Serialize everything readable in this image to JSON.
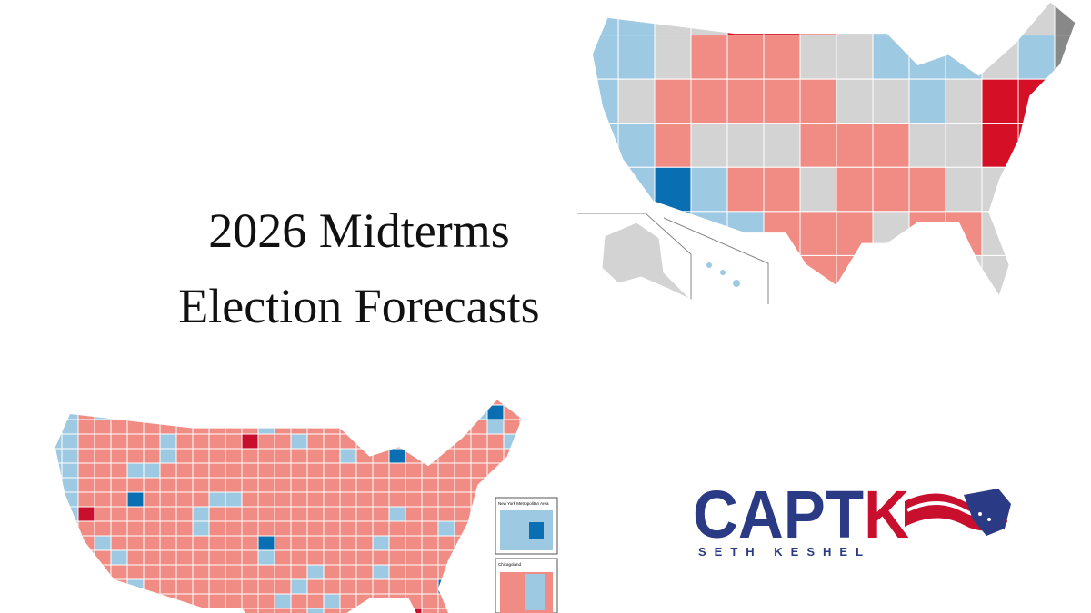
{
  "title": {
    "lines": [
      "2026 Midterms",
      "Election Forecasts"
    ]
  },
  "logo": {
    "mark": "CAPTK",
    "name": "SETH KESHEL"
  },
  "insets": [
    "New York Metropolitan Area",
    "Chicagoland"
  ]
}
